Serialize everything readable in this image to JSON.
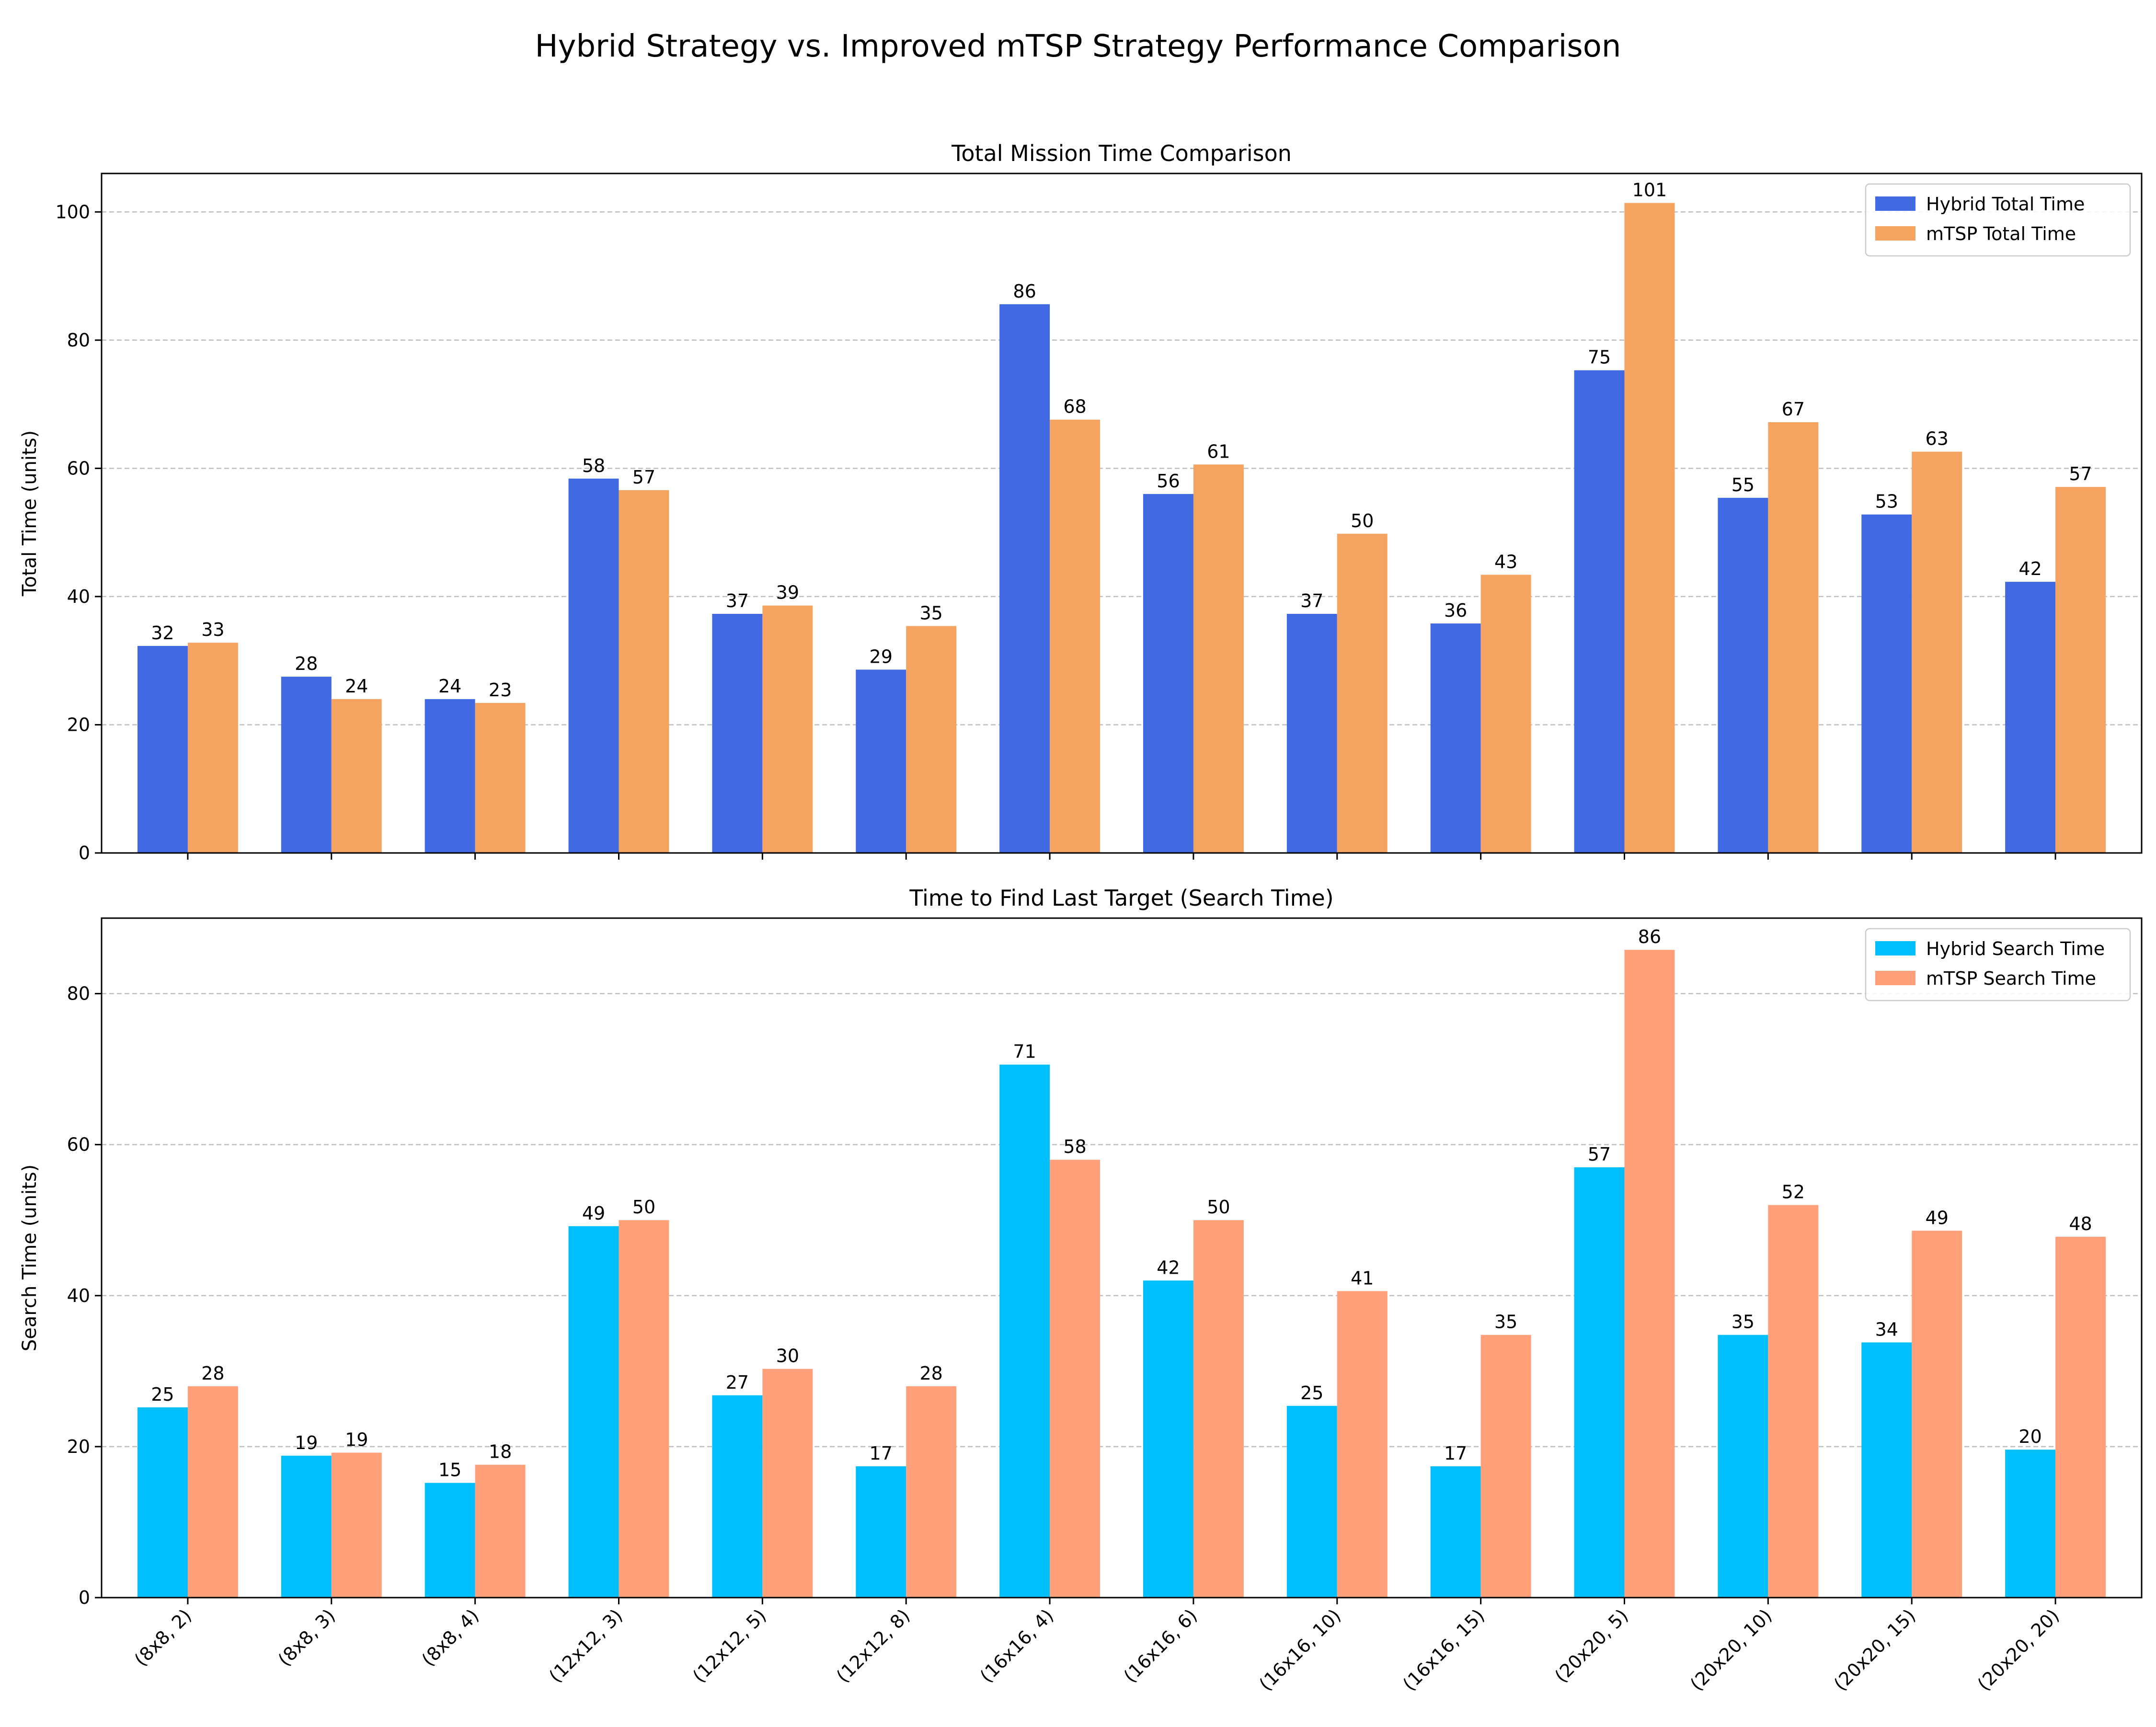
{
  "suptitle": "Hybrid Strategy vs. Improved mTSP Strategy Performance Comparison",
  "chart_data": [
    {
      "type": "bar",
      "title": "Total Mission Time Comparison",
      "xlabel": "",
      "ylabel": "Total Time (units)",
      "ylim": [
        0,
        106
      ],
      "yticks": [
        0,
        20,
        40,
        60,
        80,
        100
      ],
      "grid": "y-dashed",
      "legend": "top-right",
      "categories": [
        "(8x8, 2)",
        "(8x8, 3)",
        "(8x8, 4)",
        "(12x12, 3)",
        "(12x12, 5)",
        "(12x12, 8)",
        "(16x16, 4)",
        "(16x16, 6)",
        "(16x16, 10)",
        "(16x16, 15)",
        "(20x20, 5)",
        "(20x20, 10)",
        "(20x20, 15)",
        "(20x20, 20)"
      ],
      "show_category_labels": false,
      "series": [
        {
          "name": "Hybrid Total Time",
          "color": "#4169E1",
          "values": [
            32.3,
            27.5,
            24.0,
            58.4,
            37.3,
            28.6,
            85.6,
            56.0,
            37.3,
            35.8,
            75.3,
            55.4,
            52.8,
            42.3
          ],
          "labels": [
            "32",
            "28",
            "24",
            "58",
            "37",
            "29",
            "86",
            "56",
            "37",
            "36",
            "75",
            "55",
            "53",
            "42"
          ]
        },
        {
          "name": "mTSP Total Time",
          "color": "#F4A460",
          "values": [
            32.8,
            24.0,
            23.4,
            56.6,
            38.6,
            35.4,
            67.6,
            60.6,
            49.8,
            43.4,
            101.4,
            67.2,
            62.6,
            57.1
          ],
          "labels": [
            "33",
            "24",
            "23",
            "57",
            "39",
            "35",
            "68",
            "61",
            "50",
            "43",
            "101",
            "67",
            "63",
            "57"
          ]
        }
      ]
    },
    {
      "type": "bar",
      "title": "Time to Find Last Target (Search Time)",
      "xlabel": "",
      "ylabel": "Search Time (units)",
      "ylim": [
        0,
        90
      ],
      "yticks": [
        0,
        20,
        40,
        60,
        80
      ],
      "grid": "y-dashed",
      "legend": "top-right",
      "categories": [
        "(8x8, 2)",
        "(8x8, 3)",
        "(8x8, 4)",
        "(12x12, 3)",
        "(12x12, 5)",
        "(12x12, 8)",
        "(16x16, 4)",
        "(16x16, 6)",
        "(16x16, 10)",
        "(16x16, 15)",
        "(20x20, 5)",
        "(20x20, 10)",
        "(20x20, 15)",
        "(20x20, 20)"
      ],
      "show_category_labels": true,
      "series": [
        {
          "name": "Hybrid Search Time",
          "color": "#00BFFF",
          "values": [
            25.2,
            18.8,
            15.2,
            49.2,
            26.8,
            17.4,
            70.6,
            42.0,
            25.4,
            17.4,
            57.0,
            34.8,
            33.8,
            19.6
          ],
          "labels": [
            "25",
            "19",
            "15",
            "49",
            "27",
            "17",
            "71",
            "42",
            "25",
            "17",
            "57",
            "35",
            "34",
            "20"
          ]
        },
        {
          "name": "mTSP Search Time",
          "color": "#FFA07A",
          "values": [
            28.0,
            19.2,
            17.6,
            50.0,
            30.3,
            28.0,
            58.0,
            50.0,
            40.6,
            34.8,
            85.8,
            52.0,
            48.6,
            47.8
          ],
          "labels": [
            "28",
            "19",
            "18",
            "50",
            "30",
            "28",
            "58",
            "50",
            "41",
            "35",
            "86",
            "52",
            "49",
            "48"
          ]
        }
      ]
    }
  ]
}
